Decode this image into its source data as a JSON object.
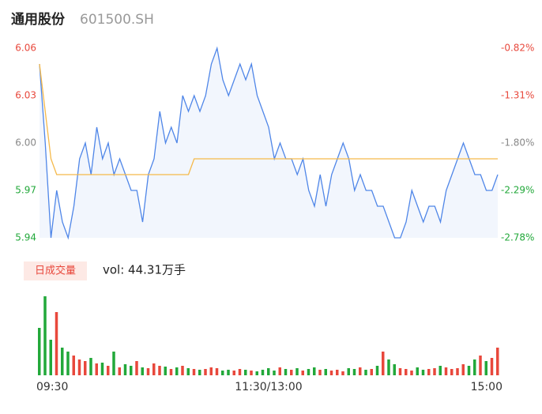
{
  "chart_data": {
    "type": "line",
    "title": "通用股份",
    "subtitle": "601500.SH",
    "volume_label": "日成交量",
    "volume_text": "vol: 44.31万手",
    "categories": [
      "09:30",
      null,
      null,
      null,
      null,
      null,
      null,
      null,
      null,
      null,
      null,
      null,
      null,
      null,
      null,
      null,
      null,
      null,
      null,
      null,
      null,
      null,
      null,
      null,
      null,
      null,
      null,
      null,
      null,
      null,
      null,
      null,
      null,
      null,
      null,
      null,
      null,
      null,
      null,
      null,
      "11:30/13:00",
      null,
      null,
      null,
      null,
      null,
      null,
      null,
      null,
      null,
      null,
      null,
      null,
      null,
      null,
      null,
      null,
      null,
      null,
      null,
      null,
      null,
      null,
      null,
      null,
      null,
      null,
      null,
      null,
      null,
      null,
      null,
      null,
      null,
      null,
      null,
      null,
      null,
      null,
      null,
      "15:00"
    ],
    "series": [
      {
        "name": "price",
        "color": "#4f86e8",
        "values": [
          6.05,
          6.0,
          5.94,
          5.97,
          5.95,
          5.94,
          5.96,
          5.99,
          6.0,
          5.98,
          6.01,
          5.99,
          6.0,
          5.98,
          5.99,
          5.98,
          5.97,
          5.97,
          5.95,
          5.98,
          5.99,
          6.02,
          6.0,
          6.01,
          6.0,
          6.03,
          6.02,
          6.03,
          6.02,
          6.03,
          6.05,
          6.06,
          6.04,
          6.03,
          6.04,
          6.05,
          6.04,
          6.05,
          6.03,
          6.02,
          6.01,
          5.99,
          6.0,
          5.99,
          5.99,
          5.98,
          5.99,
          5.97,
          5.96,
          5.98,
          5.96,
          5.98,
          5.99,
          6.0,
          5.99,
          5.97,
          5.98,
          5.97,
          5.97,
          5.96,
          5.96,
          5.95,
          5.94,
          5.94,
          5.95,
          5.97,
          5.96,
          5.95,
          5.96,
          5.96,
          5.95,
          5.97,
          5.98,
          5.99,
          6.0,
          5.99,
          5.98,
          5.98,
          5.97,
          5.97,
          5.98
        ]
      },
      {
        "name": "average",
        "color": "#f5b94a",
        "values": [
          6.05,
          6.02,
          5.99,
          5.98,
          5.98,
          5.98,
          5.98,
          5.98,
          5.98,
          5.98,
          5.98,
          5.98,
          5.98,
          5.98,
          5.98,
          5.98,
          5.98,
          5.98,
          5.98,
          5.98,
          5.98,
          5.98,
          5.98,
          5.98,
          5.98,
          5.98,
          5.98,
          5.99,
          5.99,
          5.99,
          5.99,
          5.99,
          5.99,
          5.99,
          5.99,
          5.99,
          5.99,
          5.99,
          5.99,
          5.99,
          5.99,
          5.99,
          5.99,
          5.99,
          5.99,
          5.99,
          5.99,
          5.99,
          5.99,
          5.99,
          5.99,
          5.99,
          5.99,
          5.99,
          5.99,
          5.99,
          5.99,
          5.99,
          5.99,
          5.99,
          5.99,
          5.99,
          5.99,
          5.99,
          5.99,
          5.99,
          5.99,
          5.99,
          5.99,
          5.99,
          5.99,
          5.99,
          5.99,
          5.99,
          5.99,
          5.99,
          5.99,
          5.99,
          5.99,
          5.99,
          5.99
        ]
      }
    ],
    "volume": {
      "up_color": "#e8483c",
      "down_color": "#22a83a",
      "values": [
        60,
        100,
        45,
        80,
        35,
        30,
        25,
        20,
        18,
        22,
        15,
        16,
        12,
        30,
        10,
        14,
        12,
        18,
        10,
        9,
        15,
        12,
        11,
        8,
        10,
        12,
        9,
        8,
        7,
        8,
        10,
        9,
        6,
        7,
        6,
        8,
        7,
        6,
        5,
        7,
        9,
        6,
        10,
        8,
        7,
        9,
        6,
        8,
        10,
        7,
        8,
        6,
        7,
        5,
        9,
        8,
        10,
        7,
        8,
        12,
        30,
        20,
        14,
        9,
        8,
        6,
        10,
        7,
        8,
        9,
        12,
        10,
        8,
        9,
        14,
        12,
        20,
        25,
        18,
        22,
        35
      ]
    },
    "ylim": [
      5.94,
      6.06
    ],
    "yticks": [
      5.94,
      5.97,
      {
        "value": 6.0,
        "label": "6.00"
      },
      6.03,
      6.06
    ],
    "ytick_colors": [
      "#22a83a",
      "#22a83a",
      "#888888",
      "#e8483c",
      "#e8483c"
    ],
    "y2lim": [
      -2.78,
      -0.82
    ],
    "y2ticks": [
      {
        "value": -2.78,
        "label": "-2.78%"
      },
      {
        "value": -2.29,
        "label": "-2.29%"
      },
      {
        "value": -1.8,
        "label": "-1.80%"
      },
      {
        "value": -1.31,
        "label": "-1.31%"
      },
      {
        "value": -0.82,
        "label": "-0.82%"
      }
    ],
    "area_color": "#f2f6fd"
  }
}
